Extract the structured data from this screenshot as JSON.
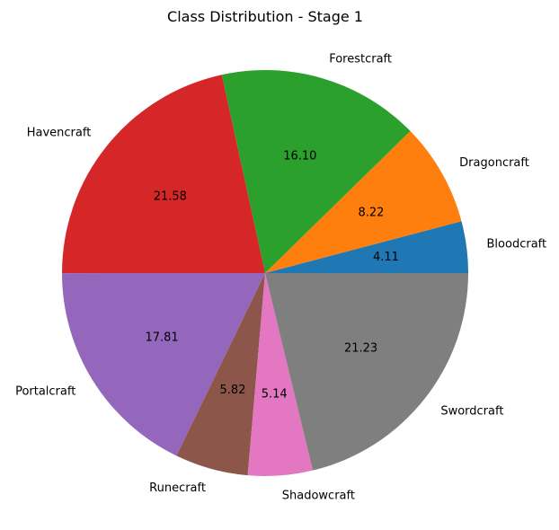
{
  "chart_data": {
    "type": "pie",
    "title": "Class Distribution - Stage 1",
    "start_angle_deg": 0,
    "direction": "counterclockwise",
    "slices": [
      {
        "label": "Bloodcraft",
        "value": 4.11,
        "display": "4.11",
        "color": "#1f77b4"
      },
      {
        "label": "Dragoncraft",
        "value": 8.22,
        "display": "8.22",
        "color": "#ff7f0e"
      },
      {
        "label": "Forestcraft",
        "value": 16.1,
        "display": "16.10",
        "color": "#2ca02c"
      },
      {
        "label": "Havencraft",
        "value": 21.58,
        "display": "21.58",
        "color": "#d62728"
      },
      {
        "label": "Portalcraft",
        "value": 17.81,
        "display": "17.81",
        "color": "#9467bd"
      },
      {
        "label": "Runecraft",
        "value": 5.82,
        "display": "5.82",
        "color": "#8c564b"
      },
      {
        "label": "Shadowcraft",
        "value": 5.14,
        "display": "5.14",
        "color": "#e377c2"
      },
      {
        "label": "Swordcraft",
        "value": 21.23,
        "display": "21.23",
        "color": "#7f7f7f"
      }
    ]
  }
}
